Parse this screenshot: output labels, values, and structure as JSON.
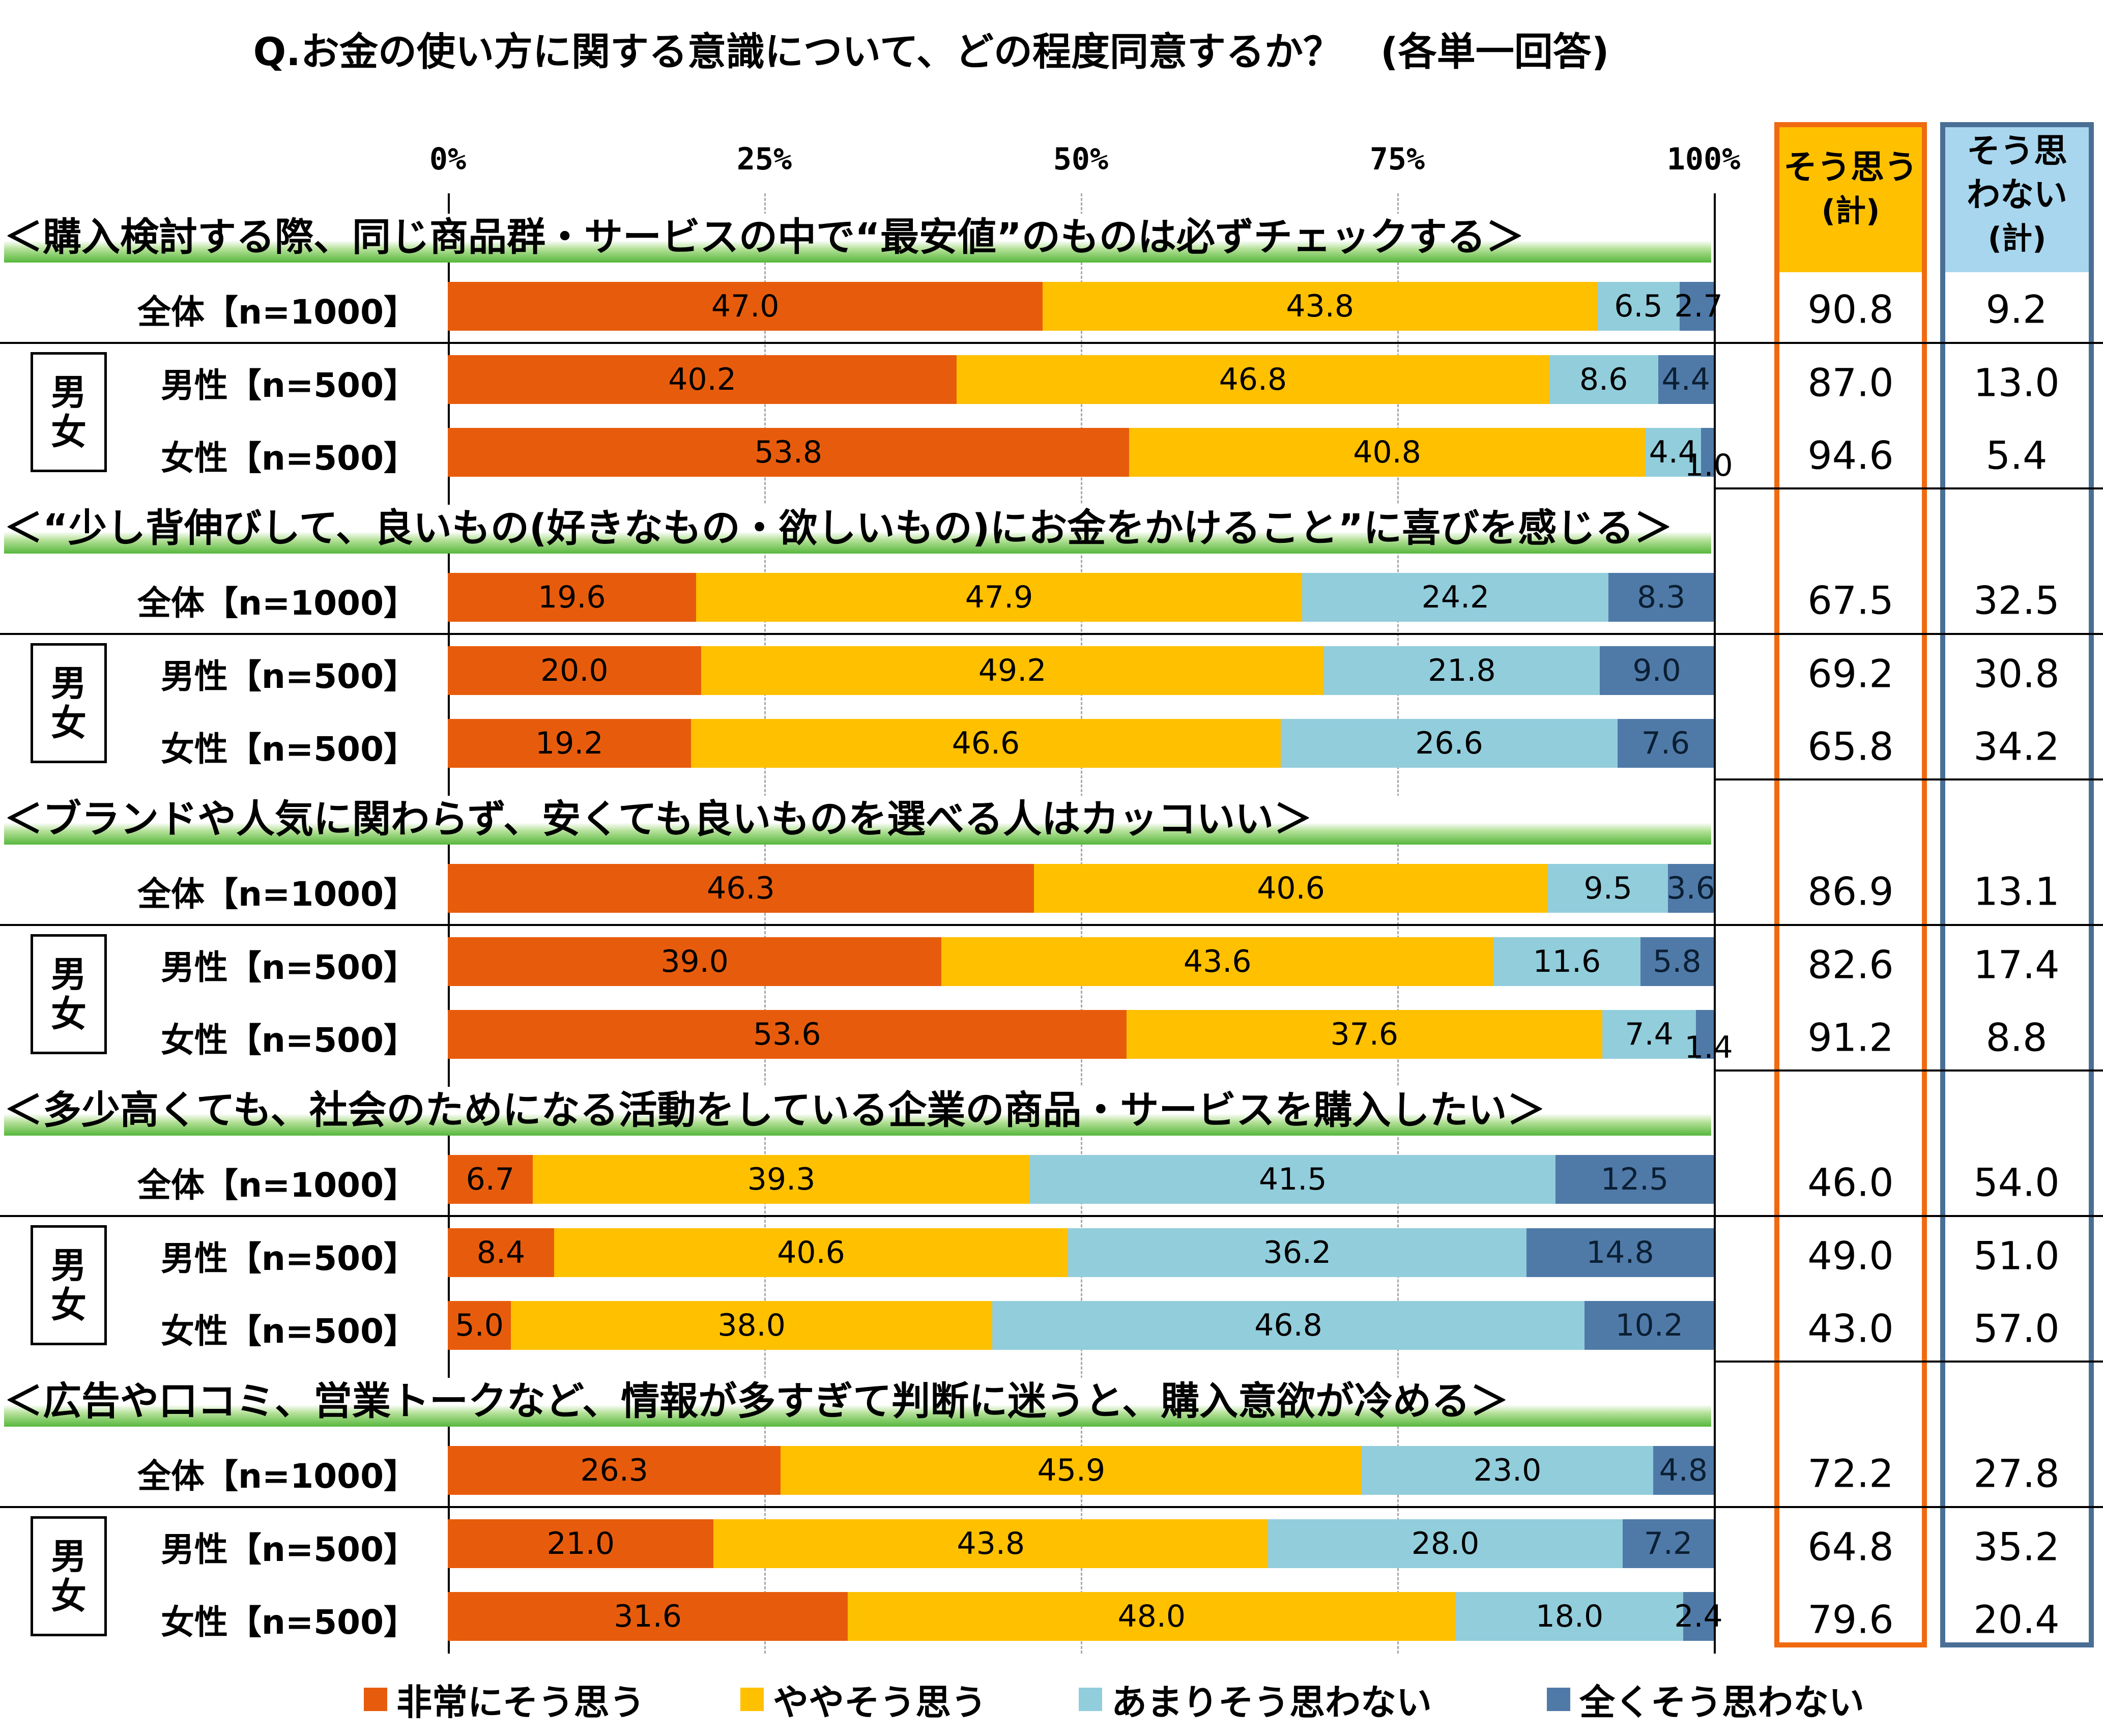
{
  "title": "Q.お金の使い方に関する意識について、どの程度同意するか？　(各単一回答)",
  "axis": {
    "ticks": [
      "0%",
      "25%",
      "50%",
      "75%",
      "100%"
    ]
  },
  "header_agree": {
    "line1": "そう思う",
    "line2": "(計)"
  },
  "header_disagree": {
    "line1": "そう思",
    "line2": "わない",
    "line3": "(計)"
  },
  "colors": {
    "very_agree": "#e75c0c",
    "somewhat_agree": "#ffc000",
    "not_really": "#92cddc",
    "not_at_all": "#4f7aa8"
  },
  "sex_box_label": {
    "line1": "男",
    "line2": "女"
  },
  "chart_data": {
    "type": "bar",
    "orientation": "horizontal-stacked-100",
    "xlim": [
      0,
      100
    ],
    "series_names": [
      "非常にそう思う",
      "ややそう思う",
      "あまりそう思わない",
      "全くそう思わない"
    ],
    "questions": [
      {
        "label": "＜購入検討する際、同じ商品群・サービスの中で“最安値”のものは必ずチェックする＞",
        "rows": [
          {
            "label": "全体【n=1000】",
            "values": [
              47.0,
              43.8,
              6.5,
              2.7
            ],
            "agree": "90.8",
            "disagree": "9.2"
          },
          {
            "label": "男性【n=500】",
            "values": [
              40.2,
              46.8,
              8.6,
              4.4
            ],
            "agree": "87.0",
            "disagree": "13.0"
          },
          {
            "label": "女性【n=500】",
            "values": [
              53.8,
              40.8,
              4.4,
              1.0
            ],
            "agree": "94.6",
            "disagree": "5.4"
          }
        ]
      },
      {
        "label": "＜“少し背伸びして、良いもの(好きなもの・欲しいもの)にお金をかけること”に喜びを感じる＞",
        "rows": [
          {
            "label": "全体【n=1000】",
            "values": [
              19.6,
              47.9,
              24.2,
              8.3
            ],
            "agree": "67.5",
            "disagree": "32.5"
          },
          {
            "label": "男性【n=500】",
            "values": [
              20.0,
              49.2,
              21.8,
              9.0
            ],
            "agree": "69.2",
            "disagree": "30.8"
          },
          {
            "label": "女性【n=500】",
            "values": [
              19.2,
              46.6,
              26.6,
              7.6
            ],
            "agree": "65.8",
            "disagree": "34.2"
          }
        ]
      },
      {
        "label": "＜ブランドや人気に関わらず、安くても良いものを選べる人はカッコいい＞",
        "rows": [
          {
            "label": "全体【n=1000】",
            "values": [
              46.3,
              40.6,
              9.5,
              3.6
            ],
            "agree": "86.9",
            "disagree": "13.1"
          },
          {
            "label": "男性【n=500】",
            "values": [
              39.0,
              43.6,
              11.6,
              5.8
            ],
            "agree": "82.6",
            "disagree": "17.4"
          },
          {
            "label": "女性【n=500】",
            "values": [
              53.6,
              37.6,
              7.4,
              1.4
            ],
            "agree": "91.2",
            "disagree": "8.8"
          }
        ]
      },
      {
        "label": "＜多少高くても、社会のためになる活動をしている企業の商品・サービスを購入したい＞",
        "rows": [
          {
            "label": "全体【n=1000】",
            "values": [
              6.7,
              39.3,
              41.5,
              12.5
            ],
            "agree": "46.0",
            "disagree": "54.0"
          },
          {
            "label": "男性【n=500】",
            "values": [
              8.4,
              40.6,
              36.2,
              14.8
            ],
            "agree": "49.0",
            "disagree": "51.0"
          },
          {
            "label": "女性【n=500】",
            "values": [
              5.0,
              38.0,
              46.8,
              10.2
            ],
            "agree": "43.0",
            "disagree": "57.0"
          }
        ]
      },
      {
        "label": "＜広告や口コミ、営業トークなど、情報が多すぎて判断に迷うと、購入意欲が冷める＞",
        "rows": [
          {
            "label": "全体【n=1000】",
            "values": [
              26.3,
              45.9,
              23.0,
              4.8
            ],
            "agree": "72.2",
            "disagree": "27.8"
          },
          {
            "label": "男性【n=500】",
            "values": [
              21.0,
              43.8,
              28.0,
              7.2
            ],
            "agree": "64.8",
            "disagree": "35.2"
          },
          {
            "label": "女性【n=500】",
            "values": [
              31.6,
              48.0,
              18.0,
              2.4
            ],
            "agree": "79.6",
            "disagree": "20.4"
          }
        ]
      }
    ]
  }
}
